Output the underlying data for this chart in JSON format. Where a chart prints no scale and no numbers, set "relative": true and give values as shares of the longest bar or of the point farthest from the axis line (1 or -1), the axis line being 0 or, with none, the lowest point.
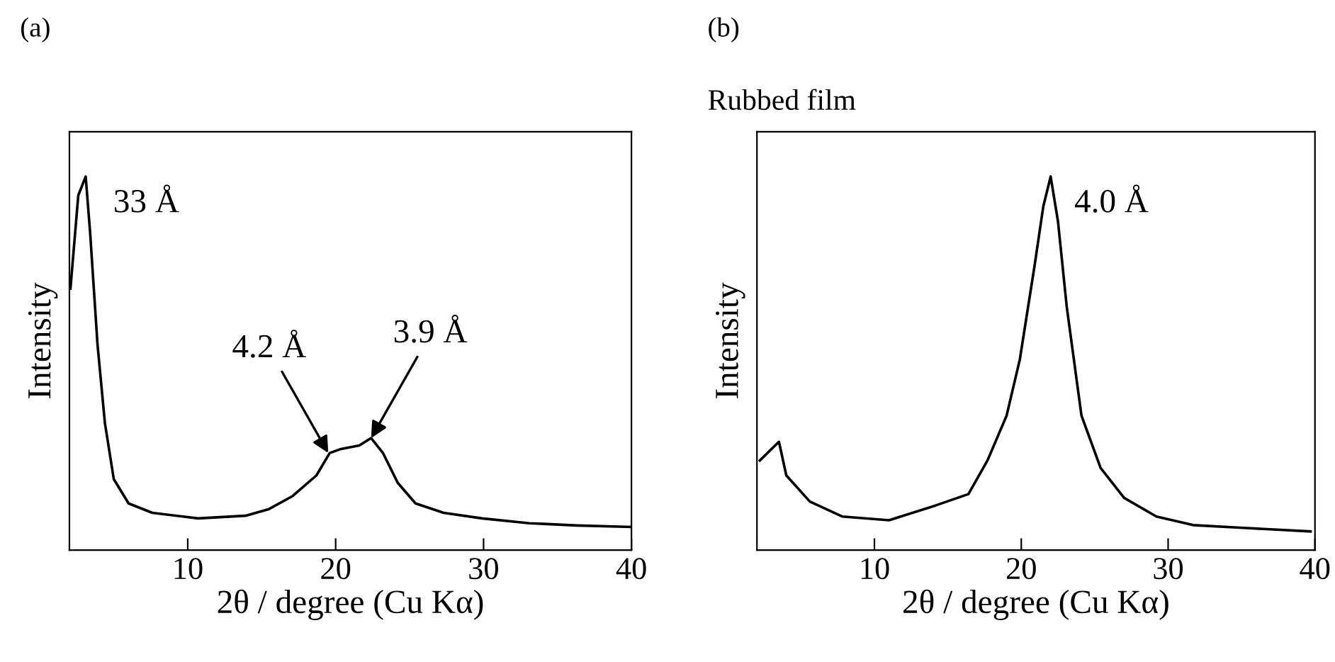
{
  "chart_data": [
    {
      "type": "line",
      "title": "(a)",
      "xlabel": "2θ / degree (Cu Kα)",
      "ylabel": "Intensity",
      "relative": true,
      "xlim": [
        2,
        40
      ],
      "xticks": [
        10,
        20,
        30,
        40
      ],
      "tick_labels": "x",
      "x": [
        2.07,
        2.6,
        3.1,
        3.4,
        3.9,
        4.4,
        5.0,
        6.0,
        7.6,
        10.7,
        13.9,
        15.5,
        17.1,
        18.7,
        19.6,
        20.3,
        21.6,
        22.4,
        23.2,
        24.2,
        25.4,
        27.3,
        29.9,
        33.1,
        36.3,
        40
      ],
      "series": [
        {
          "color": "#000000",
          "values": [
            0.7,
            0.95,
            1.0,
            0.85,
            0.55,
            0.34,
            0.19,
            0.125,
            0.1,
            0.085,
            0.092,
            0.11,
            0.145,
            0.2,
            0.26,
            0.27,
            0.28,
            0.3,
            0.26,
            0.18,
            0.125,
            0.1,
            0.085,
            0.072,
            0.066,
            0.062
          ]
        }
      ],
      "annotations": [
        {
          "text": "33 Å",
          "x": 3.1,
          "y": 1.0
        },
        {
          "text": "4.2 Å",
          "x": 19.5,
          "y": 0.26
        },
        {
          "text": "3.9 Å",
          "x": 22.4,
          "y": 0.3
        }
      ]
    },
    {
      "type": "line",
      "title": "(b)",
      "subtitle": "Rubbed film",
      "xlabel": "2θ / degree (Cu Kα)",
      "ylabel": "Intensity",
      "relative": true,
      "xlim": [
        2,
        40
      ],
      "xticks": [
        10,
        20,
        30,
        40
      ],
      "tick_labels": "x",
      "x": [
        2.2,
        3.5,
        4.0,
        5.6,
        7.8,
        11.0,
        14.2,
        16.4,
        17.7,
        19.0,
        19.9,
        20.9,
        21.5,
        22.0,
        22.5,
        23.1,
        24.1,
        25.4,
        27.0,
        29.2,
        31.7,
        34.9,
        39.7
      ],
      "series": [
        {
          "color": "#000000",
          "values": [
            0.24,
            0.29,
            0.2,
            0.13,
            0.09,
            0.08,
            0.12,
            0.15,
            0.24,
            0.36,
            0.51,
            0.76,
            0.92,
            1.0,
            0.88,
            0.65,
            0.36,
            0.22,
            0.14,
            0.09,
            0.067,
            0.06,
            0.05
          ]
        }
      ],
      "annotations": [
        {
          "text": "4.0 Å",
          "x": 22.0,
          "y": 1.0
        }
      ]
    }
  ]
}
